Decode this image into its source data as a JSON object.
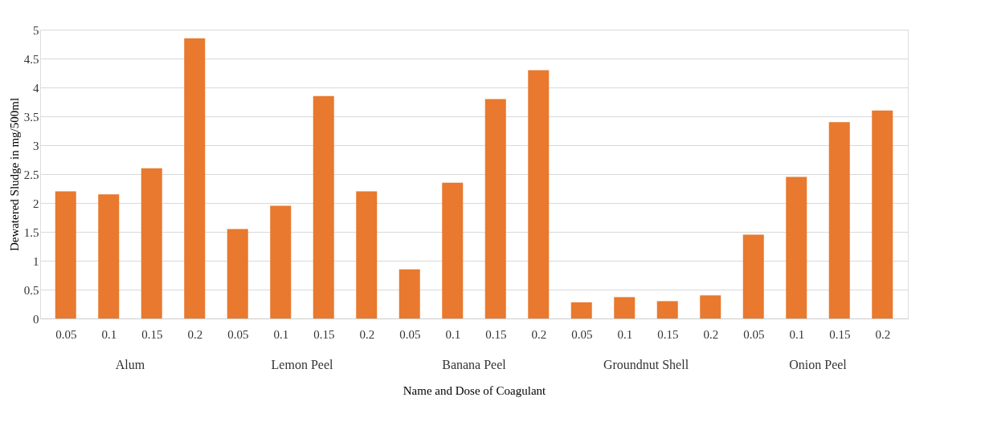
{
  "chart_data": {
    "type": "bar",
    "xlabel": "Name and Dose of Coagulant",
    "ylabel": "Dewatered Sludge in mg/500ml",
    "categories": [
      "0.05",
      "0.1",
      "0.15",
      "0.2",
      "0.05",
      "0.1",
      "0.15",
      "0.2",
      "0.05",
      "0.1",
      "0.15",
      "0.2",
      "0.05",
      "0.1",
      "0.15",
      "0.2",
      "0.05",
      "0.1",
      "0.15",
      "0.2"
    ],
    "values": [
      2.2,
      2.15,
      2.6,
      4.85,
      1.55,
      1.95,
      3.85,
      2.2,
      0.85,
      2.35,
      3.8,
      4.3,
      0.28,
      0.37,
      0.3,
      0.4,
      1.45,
      2.45,
      3.4,
      3.6
    ],
    "color": "#e8792e",
    "annotations": [
      "Alum",
      "Lemon Peel",
      "Banana Peel",
      "Groundnut Shell",
      "Onion Peel"
    ],
    "ylim": [
      0,
      5
    ],
    "yticks": [
      0,
      0.5,
      1,
      1.5,
      2,
      2.5,
      3,
      3.5,
      4,
      4.5,
      5
    ],
    "grid": "y"
  }
}
